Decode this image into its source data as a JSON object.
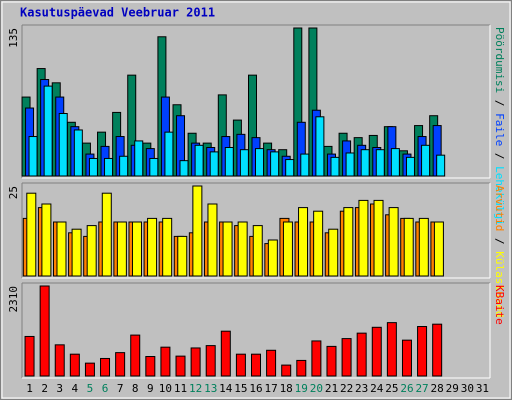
{
  "chart_data": [
    {
      "type": "bar",
      "title": "Kasutuspäevad Veebruar 2011",
      "legend_separator": " / ",
      "ylim": [
        0,
        135
      ],
      "yticks": [
        135
      ],
      "series": [
        {
          "name": "Pöördumisi",
          "color": "#00805c",
          "values": [
            72,
            98,
            85,
            49,
            30,
            40,
            58,
            92,
            30,
            127,
            65,
            39,
            30,
            74,
            51,
            92,
            30,
            24,
            135,
            135,
            27,
            39,
            35,
            37,
            45,
            23,
            46,
            55,
            null,
            null,
            null
          ]
        },
        {
          "name": "Faile",
          "color": "#0040ff",
          "values": [
            62,
            88,
            72,
            45,
            20,
            27,
            36,
            28,
            25,
            72,
            55,
            30,
            26,
            36,
            38,
            35,
            24,
            18,
            49,
            60,
            20,
            32,
            28,
            26,
            45,
            20,
            36,
            46,
            null,
            null,
            null
          ]
        },
        {
          "name": "Lehekülgi",
          "color": "#00e0ff",
          "values": [
            36,
            82,
            57,
            42,
            16,
            16,
            18,
            32,
            16,
            40,
            14,
            28,
            22,
            26,
            24,
            25,
            22,
            15,
            20,
            54,
            17,
            21,
            24,
            24,
            25,
            17,
            28,
            19,
            null,
            null,
            null
          ]
        }
      ]
    },
    {
      "type": "bar",
      "ylim": [
        0,
        25
      ],
      "yticks": [
        25
      ],
      "series": [
        {
          "name": "Arvutid",
          "color": "#ff8000",
          "values": [
            16,
            19,
            15,
            12,
            11,
            15,
            15,
            15,
            15,
            15,
            11,
            12,
            15,
            15,
            14,
            11,
            9,
            16,
            15,
            15,
            12,
            18,
            19,
            20,
            17,
            16,
            15,
            15,
            null,
            null,
            null
          ]
        },
        {
          "name": "Külastused",
          "color": "#ffff00",
          "values": [
            23,
            20,
            15,
            13,
            14,
            23,
            15,
            15,
            16,
            16,
            11,
            25,
            20,
            15,
            15,
            14,
            10,
            15,
            19,
            18,
            13,
            19,
            21,
            21,
            19,
            16,
            16,
            15,
            null,
            null,
            null
          ]
        }
      ]
    },
    {
      "type": "bar",
      "ylim": [
        0,
        2310
      ],
      "yticks": [
        2310
      ],
      "categories": [
        "1",
        "2",
        "3",
        "4",
        "5",
        "6",
        "7",
        "8",
        "9",
        "10",
        "11",
        "12",
        "13",
        "14",
        "15",
        "16",
        "17",
        "18",
        "19",
        "20",
        "21",
        "22",
        "23",
        "24",
        "25",
        "26",
        "27",
        "28",
        "29",
        "30",
        "31"
      ],
      "weekend_indices": [
        4,
        5,
        11,
        12,
        18,
        19,
        25,
        26
      ],
      "weekend_color": "#00805c",
      "label_color": "#000000",
      "series": [
        {
          "name": "KBaite",
          "color": "#ff0000",
          "values": [
            1015,
            2310,
            800,
            560,
            330,
            450,
            600,
            1050,
            500,
            740,
            510,
            720,
            780,
            1150,
            560,
            560,
            660,
            280,
            400,
            900,
            760,
            960,
            1100,
            1250,
            1370,
            920,
            1270,
            1330,
            null,
            null,
            null
          ]
        }
      ]
    }
  ]
}
